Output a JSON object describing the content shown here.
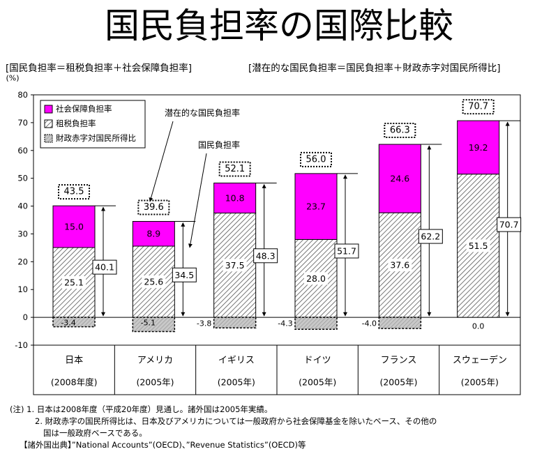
{
  "title": "国民負担率の国際比較",
  "subtitle_left": "[国民負担率＝租税負担率＋社会保障負担率]",
  "subtitle_right": "[潜在的な国民負担率＝国民負担率＋財政赤字対国民所得比]",
  "colors": {
    "social_security": "#ff00ff",
    "tax": "#ffffff",
    "deficit": "#c8c8c8"
  },
  "chart_data": {
    "type": "bar",
    "stacked": true,
    "ylabel": "(%)",
    "ylim": [
      -10,
      80
    ],
    "yticks": [
      -10,
      0,
      10,
      20,
      30,
      40,
      50,
      60,
      70,
      80
    ],
    "categories": [
      "日本",
      "アメリカ",
      "イギリス",
      "ドイツ",
      "フランス",
      "スウェーデン"
    ],
    "category_years": [
      "(2008年度)",
      "(2005年)",
      "(2005年)",
      "(2005年)",
      "(2005年)",
      "(2005年)"
    ],
    "series": [
      {
        "name": "租税負担率",
        "values": [
          25.1,
          25.6,
          37.5,
          28.0,
          37.6,
          51.5
        ]
      },
      {
        "name": "社会保障負担率",
        "values": [
          15.0,
          8.9,
          10.8,
          23.7,
          24.6,
          19.2
        ]
      },
      {
        "name": "財政赤字対国民所得比",
        "values": [
          -3.4,
          -5.1,
          -3.8,
          -4.3,
          -4.0,
          0.0
        ]
      }
    ],
    "national_burden_rate": [
      40.1,
      34.5,
      48.3,
      51.7,
      62.2,
      70.7
    ],
    "potential_burden_rate": [
      43.5,
      39.6,
      52.1,
      56.0,
      66.3,
      70.7
    ],
    "legend": [
      "社会保障負担率",
      "租税負担率",
      "財政赤字対国民所得比"
    ],
    "annotations": [
      "潜在的な国民負担率",
      "国民負担率"
    ]
  },
  "notes": [
    "(注) 1. 日本は2008年度（平成20年度）見通し。諸外国は2005年実績。",
    "2. 財政赤字の国民所得比は、日本及びアメリカについては一般政府から社会保障基金を除いたベース、その他の",
    "国は一般政府ベースである。",
    "【諸外国出典】”National Accounts”(OECD)、”Revenue Statistics”(OECD)等"
  ]
}
